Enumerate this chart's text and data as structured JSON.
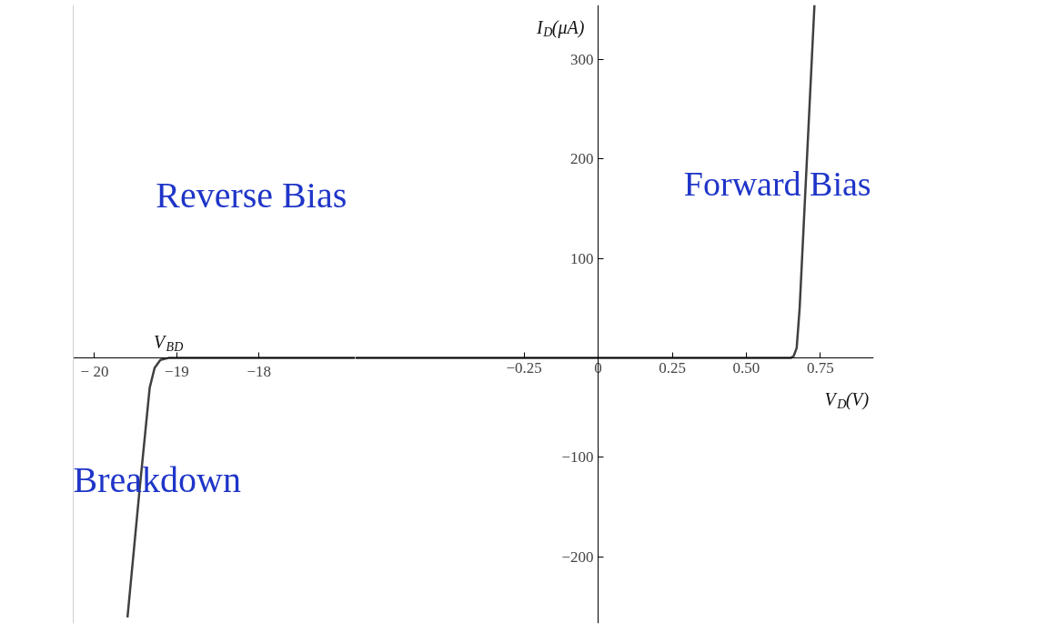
{
  "chart_data": [
    {
      "type": "line",
      "xlim": [
        -20.26,
        -16.83
      ],
      "xticks": [
        {
          "value": -20,
          "label": "− 20"
        },
        {
          "value": -19,
          "label": "−19"
        },
        {
          "value": -18,
          "label": "−18"
        }
      ],
      "ylim": [
        -267,
        355
      ],
      "tick_labels": "x",
      "grid": false,
      "annotations": [
        "Reverse Bias",
        "Breakdown",
        {
          "text": "V$_{BD}$",
          "x": -19.1,
          "y": 0
        }
      ],
      "series": [
        {
          "color": "#404040",
          "x": [
            -19.6,
            -19.45,
            -19.33,
            -19.27,
            -19.2,
            -19.1,
            -16.83
          ],
          "values": [
            -261,
            -130,
            -30,
            -10,
            -2,
            0,
            0
          ]
        }
      ]
    },
    {
      "type": "line",
      "xlim": [
        -0.82,
        0.93
      ],
      "xticks": [
        {
          "value": -0.25,
          "label": "−0.25"
        },
        0,
        0.25,
        {
          "value": 0.5,
          "label": "0.50"
        },
        0.75
      ],
      "ylim": [
        -267,
        355
      ],
      "yticks": [
        {
          "value": -200,
          "label": "−200"
        },
        {
          "value": -100,
          "label": "−100"
        },
        100,
        200,
        300
      ],
      "grid": false,
      "xlabel": "V$_{D}$(V)",
      "ylabel": "I$_{D}$(μA)",
      "annotations": [
        "Forward Bias"
      ],
      "series": [
        {
          "color": "#404040",
          "x": [
            -0.82,
            0.65,
            0.66,
            0.67,
            0.68,
            0.73
          ],
          "values": [
            0,
            0,
            2,
            10,
            50,
            355
          ]
        }
      ]
    }
  ]
}
